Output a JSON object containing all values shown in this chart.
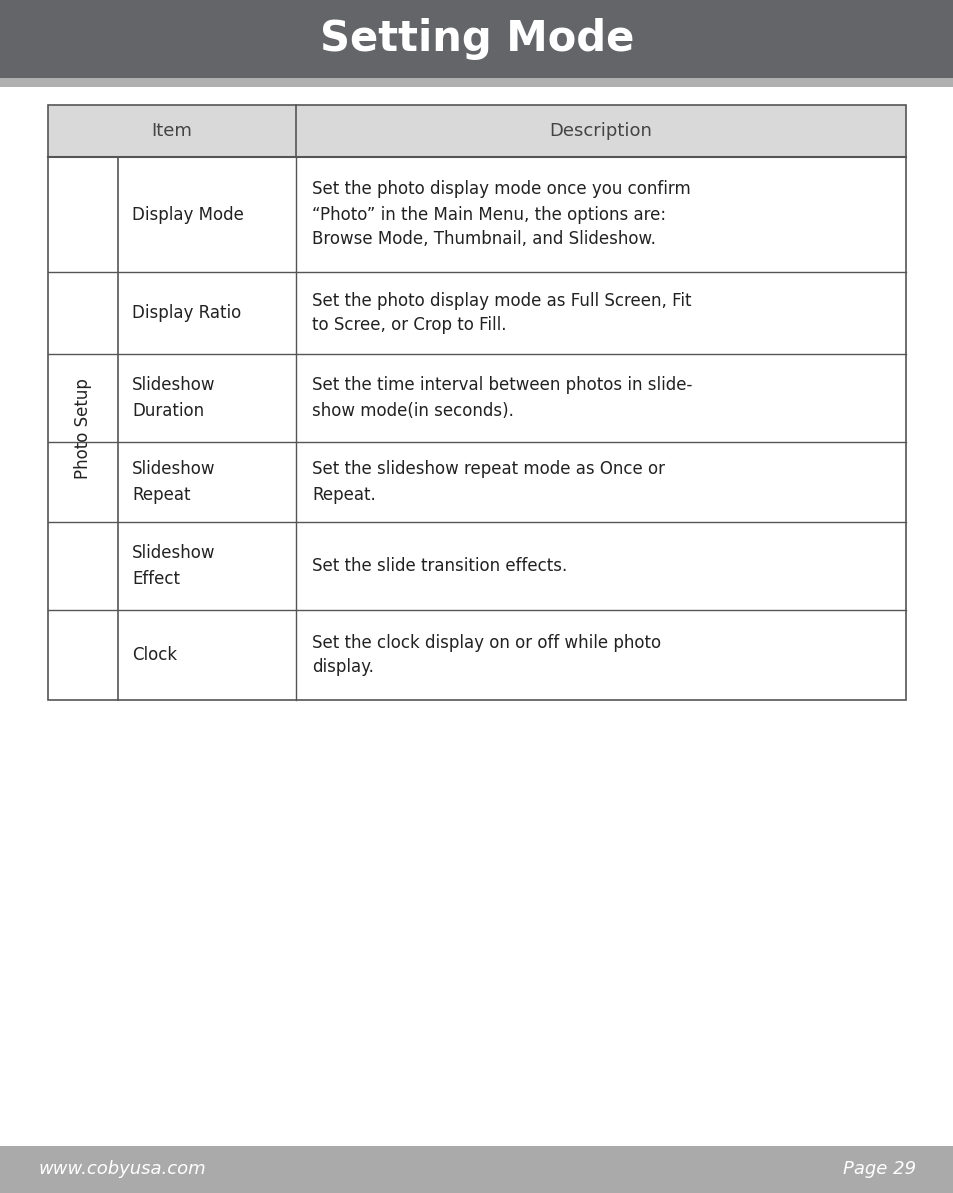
{
  "title": "Setting Mode",
  "title_bg_color": "#636569",
  "title_text_color": "#ffffff",
  "title_fontsize": 30,
  "page_bg_color": "#ffffff",
  "footer_bg_color": "#aaaaaa",
  "footer_left": "www.cobyusa.com",
  "footer_right": "Page 29",
  "footer_text_color": "#ffffff",
  "footer_fontsize": 13,
  "table_border_color": "#555555",
  "header_bg_color": "#d9d9d9",
  "header_text_color": "#444444",
  "header_fontsize": 13,
  "cell_bg_color": "#ffffff",
  "cell_text_color": "#222222",
  "cell_fontsize": 12,
  "row_label": "Photo Setup",
  "row_label_fontsize": 12,
  "col1_header": "Item",
  "col2_header": "Description",
  "rows": [
    {
      "item": "Display Mode",
      "description": "Set the photo display mode once you confirm\n“Photo” in the Main Menu, the options are:\nBrowse Mode, Thumbnail, and Slideshow."
    },
    {
      "item": "Display Ratio",
      "description": "Set the photo display mode as Full Screen, Fit\nto Scree, or Crop to Fill."
    },
    {
      "item": "Slideshow\nDuration",
      "description": "Set the time interval between photos in slide-\nshow mode(in seconds)."
    },
    {
      "item": "Slideshow\nRepeat",
      "description": "Set the slideshow repeat mode as Once or\nRepeat."
    },
    {
      "item": "Slideshow\nEffect",
      "description": "Set the slide transition effects."
    },
    {
      "item": "Clock",
      "description": "Set the clock display on or off while photo\ndisplay."
    }
  ]
}
